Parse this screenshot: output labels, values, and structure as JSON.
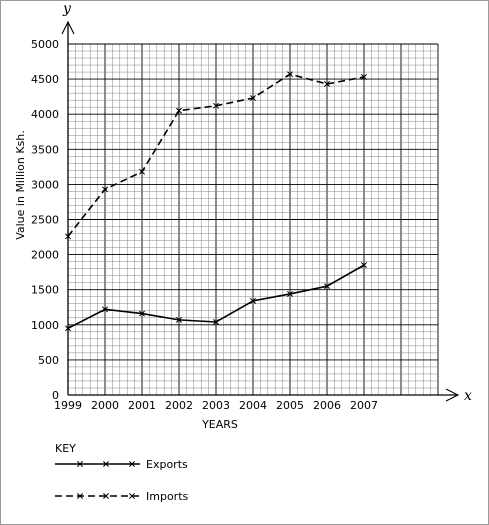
{
  "chart_data": {
    "type": "line",
    "title": "",
    "xlabel": "YEARS",
    "ylabel": "Value in Million Ksh.",
    "x_axis_letter": "x",
    "y_axis_letter": "y",
    "x": [
      1999,
      2000,
      2001,
      2002,
      2003,
      2004,
      2005,
      2006,
      2007
    ],
    "ylim": [
      0,
      5000
    ],
    "yticks": [
      0,
      500,
      1000,
      1500,
      2000,
      2500,
      3000,
      3500,
      4000,
      4500,
      5000
    ],
    "grid": true,
    "series": [
      {
        "name": "Exports",
        "style": "solid",
        "color": "#000000",
        "values": [
          950,
          1220,
          1160,
          1070,
          1040,
          1340,
          1440,
          1550,
          1850
        ]
      },
      {
        "name": "Imports",
        "style": "dashed",
        "color": "#000000",
        "values": [
          2260,
          2930,
          3180,
          4050,
          4120,
          4230,
          4570,
          4430,
          4530
        ]
      }
    ],
    "legend": {
      "title": "KEY",
      "position": "bottom-left"
    }
  }
}
